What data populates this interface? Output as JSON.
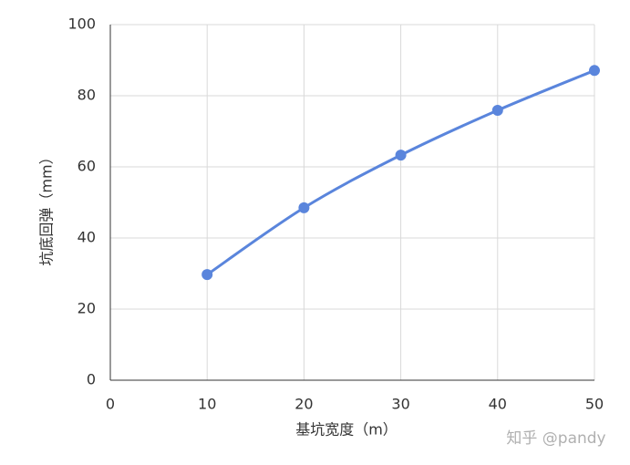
{
  "chart_data": {
    "type": "line",
    "xlabel": "基坑宽度（m）",
    "ylabel": "坑底回弹（mm）",
    "x": [
      10,
      20,
      30,
      40,
      50
    ],
    "series": [
      {
        "name": "坑底回弹",
        "color": "#5a85dc",
        "values": [
          29.7,
          48.5,
          63.3,
          75.9,
          87.1
        ]
      }
    ],
    "xlim": [
      0,
      50
    ],
    "xticks": [
      0,
      10,
      20,
      30,
      40,
      50
    ],
    "ylim": [
      0,
      100
    ],
    "yticks": [
      0,
      20,
      40,
      60,
      80,
      100
    ],
    "grid": true,
    "smooth": true,
    "watermark": "知乎 @pandy"
  }
}
